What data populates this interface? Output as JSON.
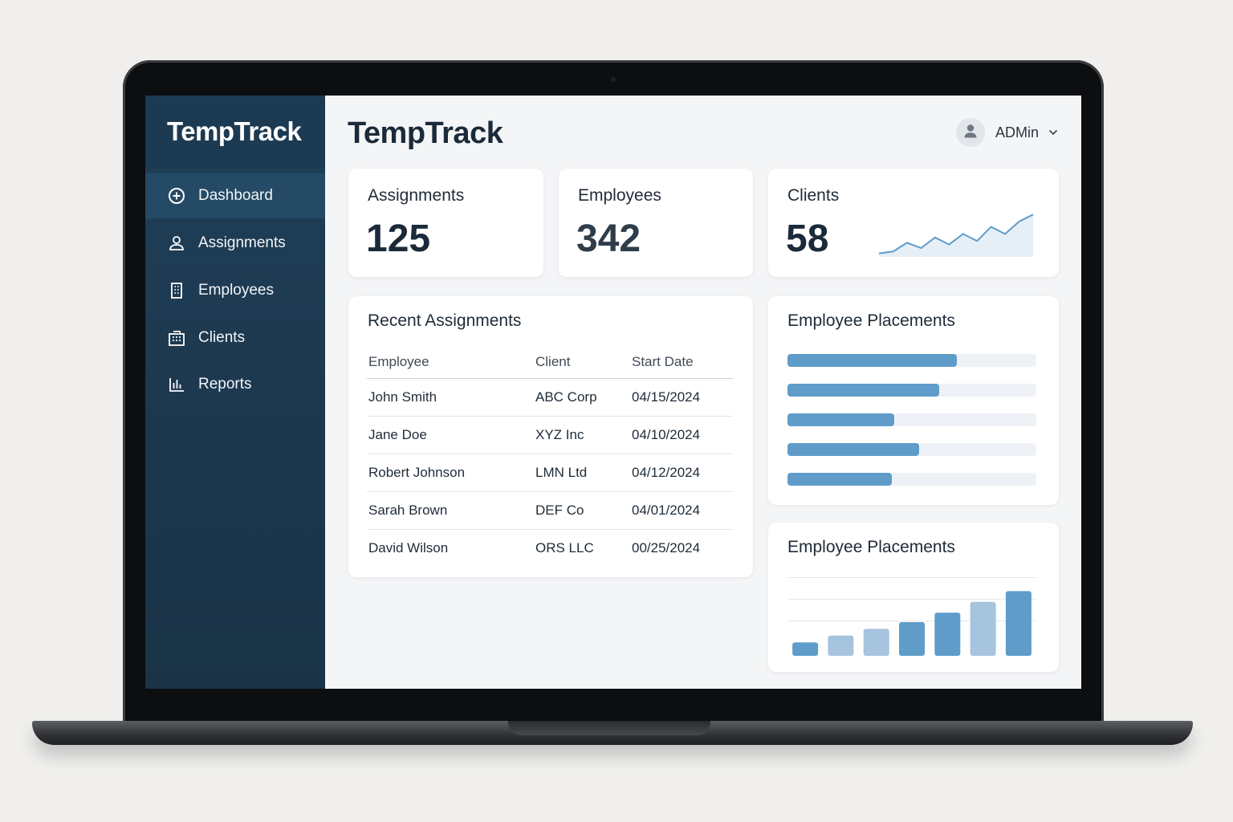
{
  "app": {
    "brand": "TempTrack",
    "title": "TempTrack",
    "user": "ADMin"
  },
  "sidebar": {
    "items": [
      {
        "label": "Dashboard",
        "icon": "plus-circle-icon",
        "active": true
      },
      {
        "label": "Assignments",
        "icon": "user-icon",
        "active": false
      },
      {
        "label": "Employees",
        "icon": "building-icon",
        "active": false
      },
      {
        "label": "Clients",
        "icon": "office-icon",
        "active": false
      },
      {
        "label": "Reports",
        "icon": "bar-chart-icon",
        "active": false
      }
    ]
  },
  "stats": {
    "assignments": {
      "label": "Assignments",
      "value": "125"
    },
    "employees": {
      "label": "Employees",
      "value": "342"
    },
    "clients": {
      "label": "Clients",
      "value": "58"
    }
  },
  "recent": {
    "title": "Recent Assignments",
    "columns": [
      "Employee",
      "Client",
      "Start Date"
    ],
    "rows": [
      [
        "John Smith",
        "ABC Corp",
        "04/15/2024"
      ],
      [
        "Jane Doe",
        "XYZ Inc",
        "04/10/2024"
      ],
      [
        "Robert Johnson",
        "LMN Ltd",
        "04/12/2024"
      ],
      [
        "Sarah Brown",
        "DEF Co",
        "04/01/2024"
      ],
      [
        "David Wilson",
        "ORS LLC",
        "00/25/2024"
      ]
    ]
  },
  "placements_bars": {
    "title": "Employee Placements"
  },
  "placements_columns": {
    "title": "Employee Placements"
  },
  "colors": {
    "sidebar": "#1f3f58",
    "accent": "#5f9cc9",
    "accent_light": "#a6c4de",
    "text": "#1b2a3a"
  },
  "chart_data": [
    {
      "type": "line",
      "values": [
        2,
        3,
        8,
        5,
        11,
        7,
        13,
        9,
        17,
        13,
        20,
        24
      ],
      "ylim": [
        0,
        30
      ],
      "grid": false
    },
    {
      "type": "bar",
      "orientation": "horizontal",
      "values": [
        0.68,
        0.61,
        0.43,
        0.53,
        0.42
      ],
      "xlim": [
        0,
        1
      ],
      "grid": false
    },
    {
      "type": "bar",
      "values": [
        1,
        1.5,
        2,
        2.5,
        3.2,
        4,
        4.8
      ],
      "ylim": [
        0,
        5
      ],
      "grid": true
    }
  ]
}
